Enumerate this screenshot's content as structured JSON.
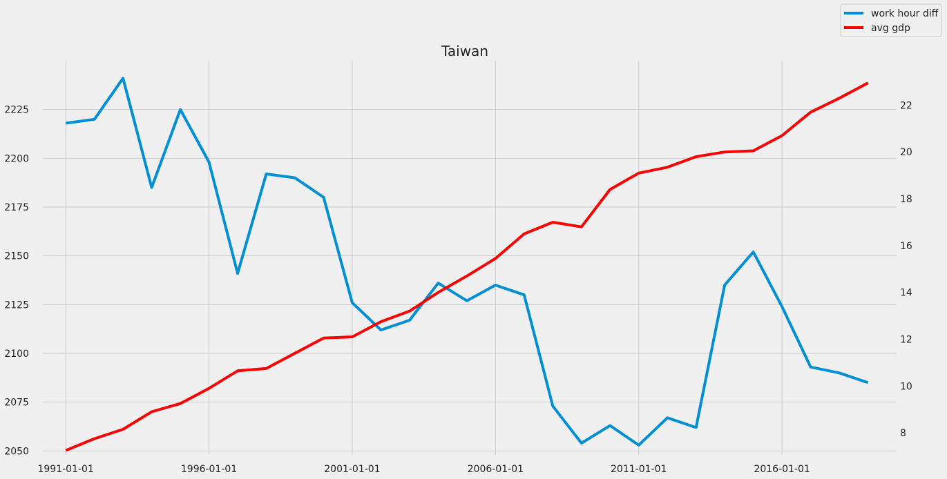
{
  "chart_data": {
    "type": "line",
    "title": "Taiwan",
    "xlabel": "",
    "ylabel": "",
    "x": [
      1991,
      1992,
      1993,
      1994,
      1995,
      1996,
      1997,
      1998,
      1999,
      2000,
      2001,
      2002,
      2003,
      2004,
      2005,
      2006,
      2007,
      2008,
      2009,
      2010,
      2011,
      2012,
      2013,
      2014,
      2015,
      2016,
      2017,
      2018,
      2019
    ],
    "x_ticks": [
      "1991-01-01",
      "1996-01-01",
      "2001-01-01",
      "2006-01-01",
      "2011-01-01",
      "2016-01-01"
    ],
    "x_tick_years": [
      1991,
      1996,
      2001,
      2006,
      2011,
      2016
    ],
    "xlim": [
      1990.2,
      2020.0
    ],
    "series": [
      {
        "name": "work hour diff",
        "axis": "left",
        "color": "#008fd5",
        "values": [
          2218,
          2220,
          2241,
          2185,
          2225,
          2198,
          2141,
          2192,
          2190,
          2180,
          2126,
          2112,
          2117,
          2136,
          2127,
          2135,
          2130,
          2073,
          2054,
          2063,
          2053,
          2067,
          2062,
          2135,
          2152,
          2124,
          2093,
          2090,
          2085
        ]
      },
      {
        "name": "avg gdp",
        "axis": "right",
        "color": "#ff0000",
        "values": [
          7.25,
          7.75,
          8.15,
          8.9,
          9.25,
          9.9,
          10.65,
          10.75,
          11.4,
          12.05,
          12.1,
          12.75,
          13.2,
          14.0,
          14.7,
          15.45,
          16.5,
          17.0,
          16.8,
          18.4,
          19.1,
          19.35,
          19.8,
          20.0,
          20.05,
          20.7,
          21.7,
          22.3,
          22.95
        ]
      }
    ],
    "y_left": {
      "ylim": [
        2048,
        2250
      ],
      "ticks": [
        2050,
        2075,
        2100,
        2125,
        2150,
        2175,
        2200,
        2225
      ]
    },
    "y_right": {
      "ylim": [
        7.06,
        23.9
      ],
      "ticks": [
        8,
        10,
        12,
        14,
        16,
        18,
        20,
        22
      ]
    },
    "grid": true,
    "legend_position": "top-right"
  }
}
